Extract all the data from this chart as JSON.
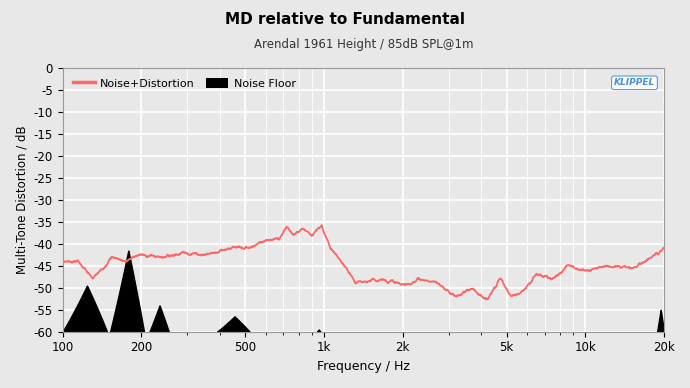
{
  "title": "MD relative to Fundamental",
  "subtitle": "Arendal 1961 Height / 85dB SPL@1m",
  "xlabel": "Frequency / Hz",
  "ylabel": "Multi-Tone Distortion / dB",
  "xlim": [
    100,
    20000
  ],
  "ylim": [
    -60,
    0
  ],
  "yticks": [
    0,
    -5,
    -10,
    -15,
    -20,
    -25,
    -30,
    -35,
    -40,
    -45,
    -50,
    -55,
    -60
  ],
  "xticks_log": [
    100,
    200,
    500,
    1000,
    2000,
    5000,
    10000,
    20000
  ],
  "xtick_labels": [
    "100",
    "200",
    "500",
    "1k",
    "2k",
    "5k",
    "10k",
    "20k"
  ],
  "background_color": "#e8e8e8",
  "plot_bg_color": "#e8e8e8",
  "grid_color": "#ffffff",
  "line_color": "#ff6666",
  "noise_floor_color": "#000000",
  "klippel_color": "#4a90d9",
  "legend_line_label": "Noise+Distortion",
  "legend_noise_label": "Noise Floor",
  "noise_floor_segments": [
    {
      "x_start": 100,
      "x_end": 148,
      "y_min": -60,
      "y_peak": -49.5
    },
    {
      "x_start": 152,
      "x_end": 205,
      "y_min": -60,
      "y_peak": -41.5
    },
    {
      "x_start": 215,
      "x_end": 255,
      "y_min": -60,
      "y_peak": -54
    },
    {
      "x_start": 390,
      "x_end": 520,
      "y_min": -60,
      "y_peak": -56.5
    },
    {
      "x_start": 940,
      "x_end": 970,
      "y_min": -60,
      "y_peak": -59.5
    },
    {
      "x_start": 18800,
      "x_end": 20000,
      "y_min": -60,
      "y_peak": -55
    }
  ]
}
